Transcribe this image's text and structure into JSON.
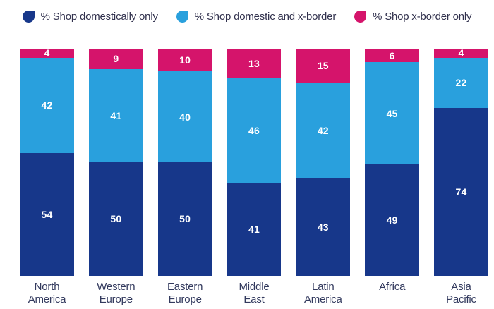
{
  "page": {
    "background": "#ffffff"
  },
  "legend": {
    "items": [
      {
        "label": "% Shop domestically only",
        "color": "#17378a"
      },
      {
        "label": "% Shop domestic and x-border",
        "color": "#29a0dd"
      },
      {
        "label": "% Shop x-border only",
        "color": "#d5146b"
      }
    ]
  },
  "chart_data": {
    "type": "bar",
    "stacked": true,
    "unit": "percent",
    "title": "",
    "xlabel": "",
    "ylabel": "",
    "ylim": [
      0,
      100
    ],
    "grid": false,
    "legend_position": "top",
    "value_labels": "inside-white",
    "text_color": "#32324e",
    "categories": [
      "North America",
      "Western Europe",
      "Eastern Europe",
      "Middle East",
      "Latin America",
      "Africa",
      "Asia Pacific"
    ],
    "category_label_lines": [
      [
        "North",
        "America"
      ],
      [
        "Western",
        "Europe"
      ],
      [
        "Eastern",
        "Europe"
      ],
      [
        "Middle",
        "East"
      ],
      [
        "Latin",
        "America"
      ],
      [
        "Africa"
      ],
      [
        "Asia",
        "Pacific"
      ]
    ],
    "series": [
      {
        "name": "% Shop x-border only",
        "stack_position": "top",
        "color": "#d5146b",
        "values": [
          4,
          9,
          10,
          13,
          15,
          6,
          4
        ]
      },
      {
        "name": "% Shop domestic and x-border",
        "stack_position": "middle",
        "color": "#29a0dd",
        "values": [
          42,
          41,
          40,
          46,
          42,
          45,
          22
        ]
      },
      {
        "name": "% Shop domestically only",
        "stack_position": "bottom",
        "color": "#17378a",
        "values": [
          54,
          50,
          50,
          41,
          43,
          49,
          74
        ]
      }
    ]
  }
}
